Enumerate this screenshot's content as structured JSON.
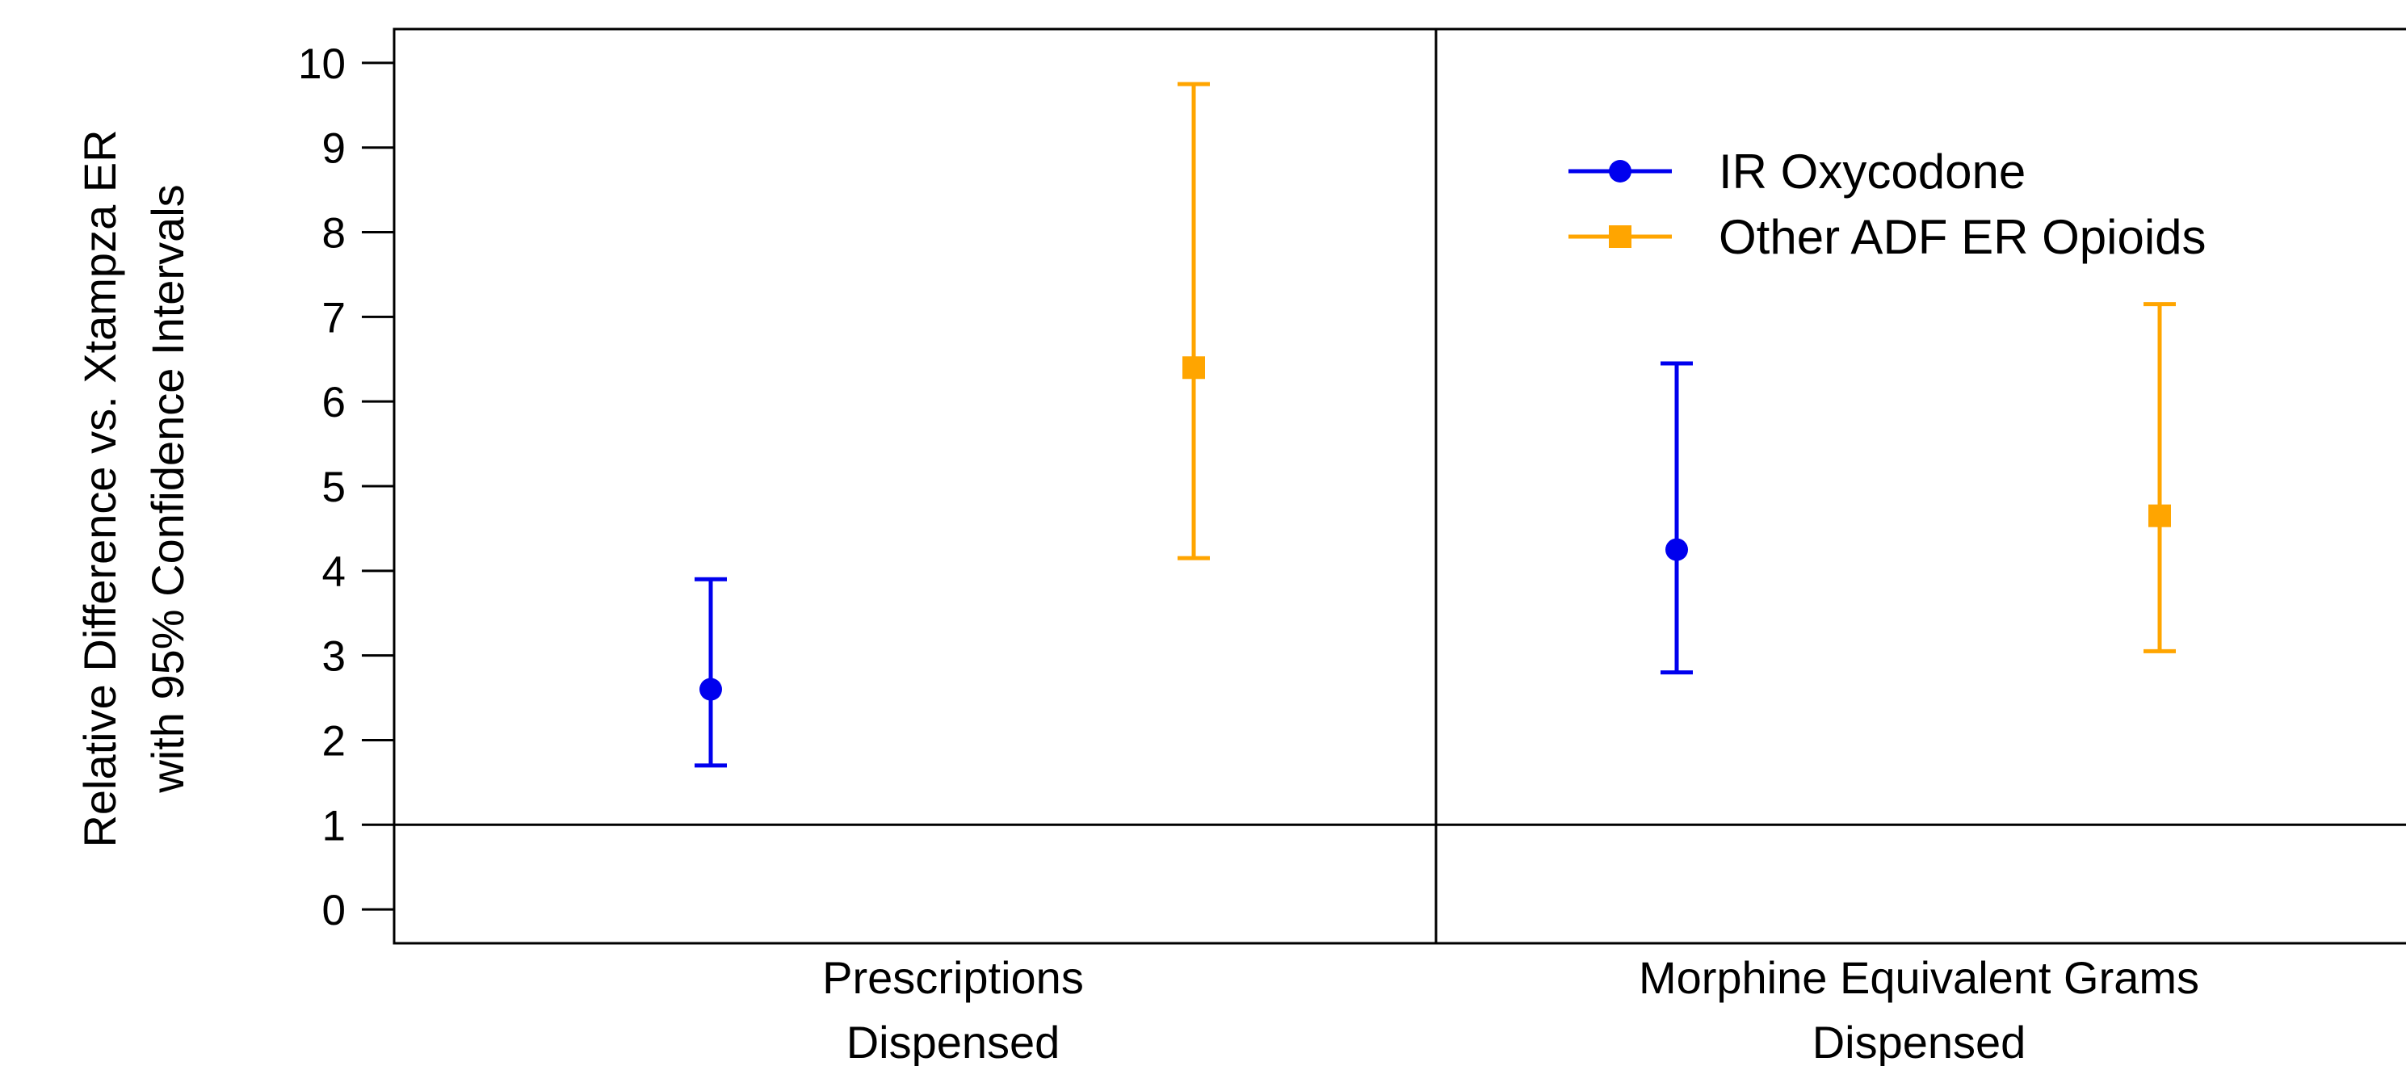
{
  "chart_data": {
    "type": "scatter",
    "subtype": "point-with-error-bars",
    "ylabel_lines": [
      "Relative Difference vs. Xtampza ER",
      "with 95% Confidence Intervals"
    ],
    "ylim": [
      -0.4,
      10.4
    ],
    "yticks": [
      0,
      1,
      2,
      3,
      4,
      5,
      6,
      7,
      8,
      9,
      10
    ],
    "reference_line": 1,
    "categories": [
      {
        "lines": [
          "Prescriptions",
          "Dispensed"
        ]
      },
      {
        "lines": [
          "Morphine Equivalent Grams",
          "Dispensed"
        ]
      }
    ],
    "legend_position": "top-right",
    "grid": false,
    "series": [
      {
        "name": "IR Oxycodone",
        "color": "#0000ee",
        "marker": "circle",
        "points": [
          {
            "category": 0,
            "value": 2.6,
            "lower": 1.7,
            "upper": 3.9
          },
          {
            "category": 1,
            "value": 4.25,
            "lower": 2.8,
            "upper": 6.45
          }
        ]
      },
      {
        "name": "Other ADF ER Opioids",
        "color": "#ffa500",
        "marker": "square",
        "points": [
          {
            "category": 0,
            "value": 6.4,
            "lower": 4.15,
            "upper": 9.75
          },
          {
            "category": 1,
            "value": 4.65,
            "lower": 3.05,
            "upper": 7.15
          }
        ]
      }
    ]
  }
}
